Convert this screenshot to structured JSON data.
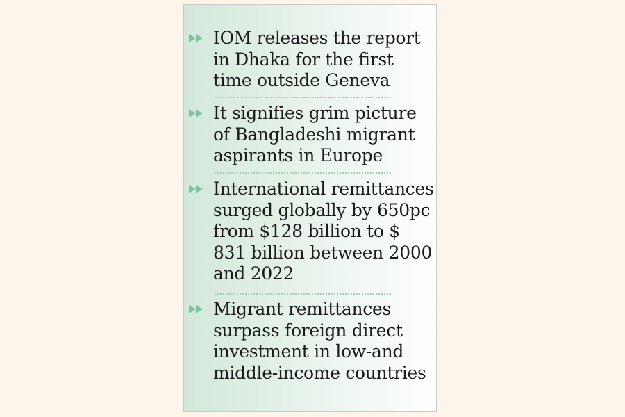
{
  "accent_color": "#7cc3a0",
  "items": [
    {
      "icon": "double-triangle-bullet",
      "text": "IOM releases the report\nin Dhaka for the first\ntime outside Geneva"
    },
    {
      "icon": "double-triangle-bullet",
      "text": "It signifies grim picture\nof Bangladeshi migrant\naspirants in Europe"
    },
    {
      "icon": "double-triangle-bullet",
      "text": "International remittances\nsurged globally by 650pc\nfrom $128 billion to $\n831 billion between 2000\nand 2022"
    },
    {
      "icon": "double-triangle-bullet",
      "text": "Migrant remittances\nsurpass foreign direct\ninvestment in low-and\nmiddle-income countries"
    }
  ]
}
